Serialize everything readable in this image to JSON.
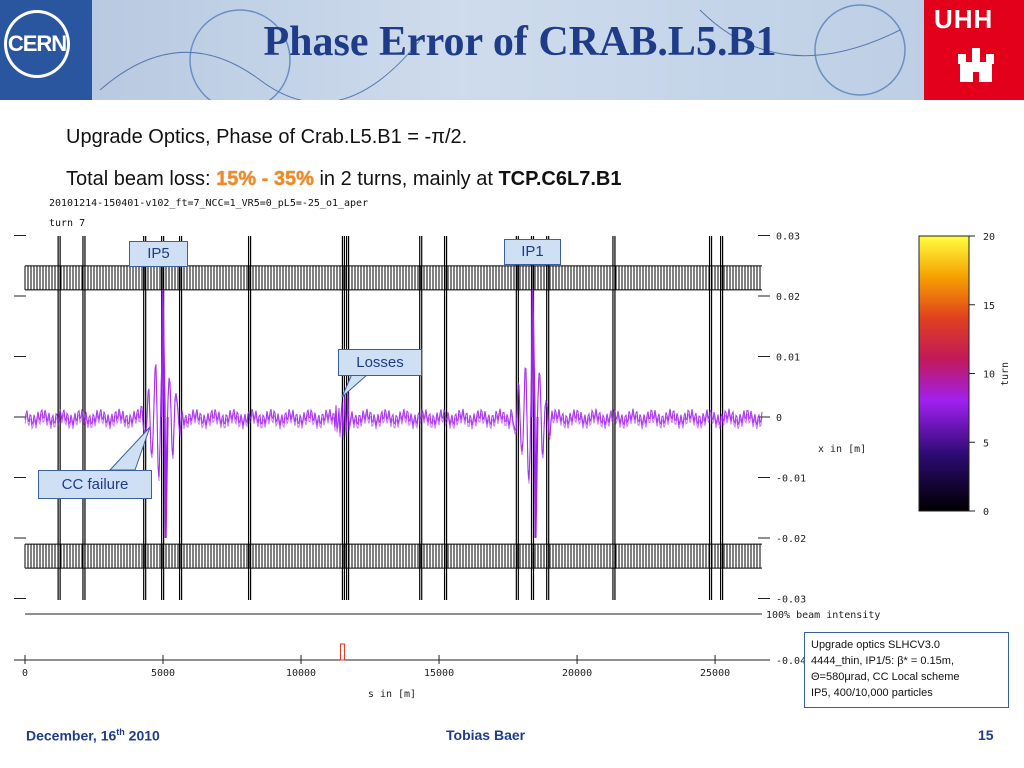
{
  "header": {
    "title": "Phase Error of CRAB.L5.B1",
    "cern_logo": "CERN",
    "uhh_logo": "UHH"
  },
  "bullets": {
    "line1": "Upgrade Optics, Phase of Crab.L5.B1 = -π/2.",
    "line2_prefix": "Total beam loss: ",
    "line2_loss": "15% - 35%",
    "line2_mid": " in 2 turns, mainly at ",
    "line2_location": "TCP.C6L7.B1"
  },
  "plot_header": {
    "file": "20101214-150401-v102_ft=7_NCC=1_VR5=0_pL5=-25_o1_aper",
    "turn": "turn 7"
  },
  "annotations": {
    "ip5": "IP5",
    "ip1": "IP1",
    "losses": "Losses",
    "cc_failure": "CC failure"
  },
  "info_box": {
    "line1": "Upgrade optics SLHCV3.0",
    "line2": "4444_thin, IP1/5: β* = 0.15m,",
    "line3": "Θ=580μrad, CC Local scheme",
    "line4": "IP5, 400/10,000 particles"
  },
  "footer": {
    "date_main": "December, 16",
    "date_sup": "th",
    "date_year": " 2010",
    "author": "Tobias Baer",
    "page": "15"
  },
  "colors": {
    "title": "#1f3c88",
    "trace": "#a020f0",
    "aperture": "#000000",
    "loss_mark": "#e03020",
    "uhh_red": "#e2001a"
  },
  "chart_data": {
    "type": "line",
    "title": "",
    "xlabel": "s in [m]",
    "ylabel": "x in [m]",
    "x_ticks": [
      "0",
      "5000",
      "10000",
      "15000",
      "20000",
      "25000"
    ],
    "y_ticks": [
      "0.03",
      "0.02",
      "0.01",
      "0",
      "-0.01",
      "-0.02",
      "-0.03",
      "-0.04"
    ],
    "xlim": [
      0,
      26700
    ],
    "ylim": [
      -0.04,
      0.03
    ],
    "intensity_label": "100% beam intensity",
    "colorbar": {
      "label": "turn",
      "ticks": [
        "20",
        "15",
        "10",
        "5",
        "0"
      ],
      "range": [
        0,
        20
      ]
    },
    "ip_positions": [
      {
        "name": "IP5",
        "s": 4950
      },
      {
        "name": "IP1",
        "s": 18350
      }
    ],
    "loss_location_s": 11500,
    "aperture_half_width": 0.023
  }
}
